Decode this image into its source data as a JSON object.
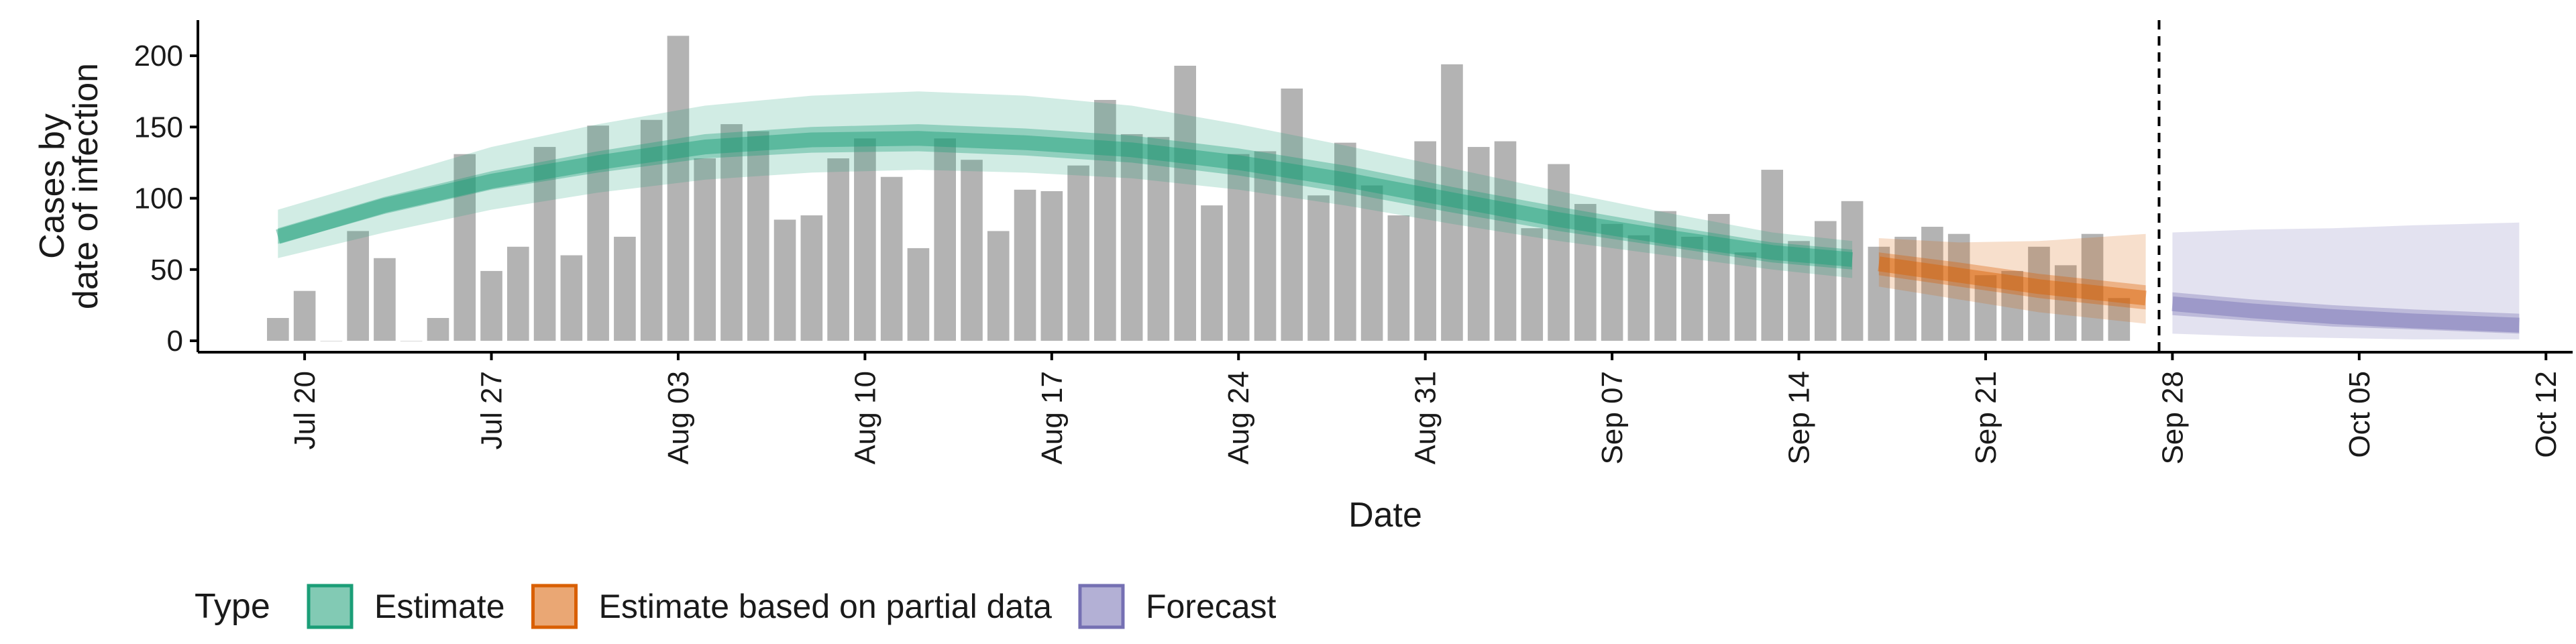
{
  "chart_data": {
    "type": "bar",
    "title": "",
    "xlabel": "Date",
    "ylabel_lines": [
      "Cases by",
      "date of infection"
    ],
    "ylim": [
      -8,
      225
    ],
    "y_ticks": [
      0,
      50,
      100,
      150,
      200
    ],
    "x_start": "2020-07-16",
    "x_end": "2020-10-13",
    "x_ticks": [
      {
        "date": "2020-07-20",
        "label": "Jul 20"
      },
      {
        "date": "2020-07-27",
        "label": "Jul 27"
      },
      {
        "date": "2020-08-03",
        "label": "Aug 03"
      },
      {
        "date": "2020-08-10",
        "label": "Aug 10"
      },
      {
        "date": "2020-08-17",
        "label": "Aug 17"
      },
      {
        "date": "2020-08-24",
        "label": "Aug 24"
      },
      {
        "date": "2020-08-31",
        "label": "Aug 31"
      },
      {
        "date": "2020-09-07",
        "label": "Sep 07"
      },
      {
        "date": "2020-09-14",
        "label": "Sep 14"
      },
      {
        "date": "2020-09-21",
        "label": "Sep 21"
      },
      {
        "date": "2020-09-28",
        "label": "Sep 28"
      },
      {
        "date": "2020-10-05",
        "label": "Oct 05"
      },
      {
        "date": "2020-10-12",
        "label": "Oct 12"
      }
    ],
    "reported_cases": {
      "start_date": "2020-07-19",
      "values": [
        16,
        35,
        0,
        77,
        58,
        0,
        16,
        131,
        49,
        66,
        136,
        60,
        151,
        73,
        155,
        214,
        128,
        152,
        147,
        85,
        88,
        128,
        142,
        115,
        65,
        142,
        127,
        77,
        106,
        105,
        123,
        169,
        145,
        143,
        193,
        95,
        131,
        133,
        177,
        102,
        139,
        109,
        88,
        140,
        194,
        136,
        140,
        79,
        124,
        96,
        82,
        74,
        91,
        73,
        89,
        62,
        120,
        70,
        84,
        98,
        66,
        73,
        80,
        75,
        46,
        49,
        66,
        53,
        75,
        30
      ]
    },
    "forecast_date": "2020-09-27",
    "colors": {
      "bars": "#b3b3b3",
      "estimate": "#1b9e77",
      "partial": "#d95f02",
      "forecast": "#7570b3",
      "axis": "#000000"
    },
    "series": [
      {
        "name": "Estimate",
        "type_key": "estimate",
        "dates": [
          "2020-07-19",
          "2020-07-23",
          "2020-07-27",
          "2020-07-31",
          "2020-08-04",
          "2020-08-08",
          "2020-08-12",
          "2020-08-16",
          "2020-08-20",
          "2020-08-24",
          "2020-08-28",
          "2020-09-01",
          "2020-09-05",
          "2020-09-09",
          "2020-09-13",
          "2020-09-16"
        ],
        "median": [
          73,
          95,
          112,
          125,
          136,
          141,
          142,
          139,
          134,
          125,
          113,
          99,
          85,
          73,
          62,
          57
        ],
        "inner": [
          [
            68,
            79
          ],
          [
            89,
            101
          ],
          [
            106,
            119
          ],
          [
            118,
            133
          ],
          [
            128,
            145
          ],
          [
            132,
            150
          ],
          [
            133,
            152
          ],
          [
            130,
            149
          ],
          [
            125,
            144
          ],
          [
            116,
            135
          ],
          [
            104,
            123
          ],
          [
            90,
            108
          ],
          [
            77,
            94
          ],
          [
            66,
            81
          ],
          [
            55,
            69
          ],
          [
            50,
            64
          ]
        ],
        "outer": [
          [
            58,
            92
          ],
          [
            76,
            114
          ],
          [
            92,
            136
          ],
          [
            104,
            152
          ],
          [
            113,
            165
          ],
          [
            118,
            172
          ],
          [
            120,
            175
          ],
          [
            118,
            172
          ],
          [
            114,
            165
          ],
          [
            106,
            152
          ],
          [
            95,
            137
          ],
          [
            82,
            121
          ],
          [
            70,
            105
          ],
          [
            60,
            90
          ],
          [
            50,
            76
          ],
          [
            44,
            70
          ]
        ]
      },
      {
        "name": "Estimate based on partial data",
        "type_key": "partial",
        "dates": [
          "2020-09-17",
          "2020-09-20",
          "2020-09-23",
          "2020-09-27"
        ],
        "median": [
          54,
          46,
          38,
          30
        ],
        "inner": [
          [
            46,
            62
          ],
          [
            38,
            55
          ],
          [
            30,
            47
          ],
          [
            22,
            39
          ]
        ],
        "outer": [
          [
            38,
            72
          ],
          [
            29,
            69
          ],
          [
            20,
            70
          ],
          [
            12,
            75
          ]
        ]
      },
      {
        "name": "Forecast",
        "type_key": "forecast",
        "dates": [
          "2020-09-28",
          "2020-10-01",
          "2020-10-04",
          "2020-10-07",
          "2020-10-11"
        ],
        "median": [
          26,
          21,
          17,
          14,
          11
        ],
        "inner": [
          [
            18,
            34
          ],
          [
            14,
            29
          ],
          [
            10,
            25
          ],
          [
            8,
            22
          ],
          [
            5,
            19
          ]
        ],
        "outer": [
          [
            5,
            76
          ],
          [
            3,
            78
          ],
          [
            2,
            79
          ],
          [
            1,
            81
          ],
          [
            1,
            83
          ]
        ]
      }
    ],
    "legend": {
      "position": "bottom-left",
      "title": "Type",
      "items": [
        {
          "label": "Estimate",
          "type_key": "estimate"
        },
        {
          "label": "Estimate based on partial data",
          "type_key": "partial"
        },
        {
          "label": "Forecast",
          "type_key": "forecast"
        }
      ]
    },
    "grid": false
  }
}
